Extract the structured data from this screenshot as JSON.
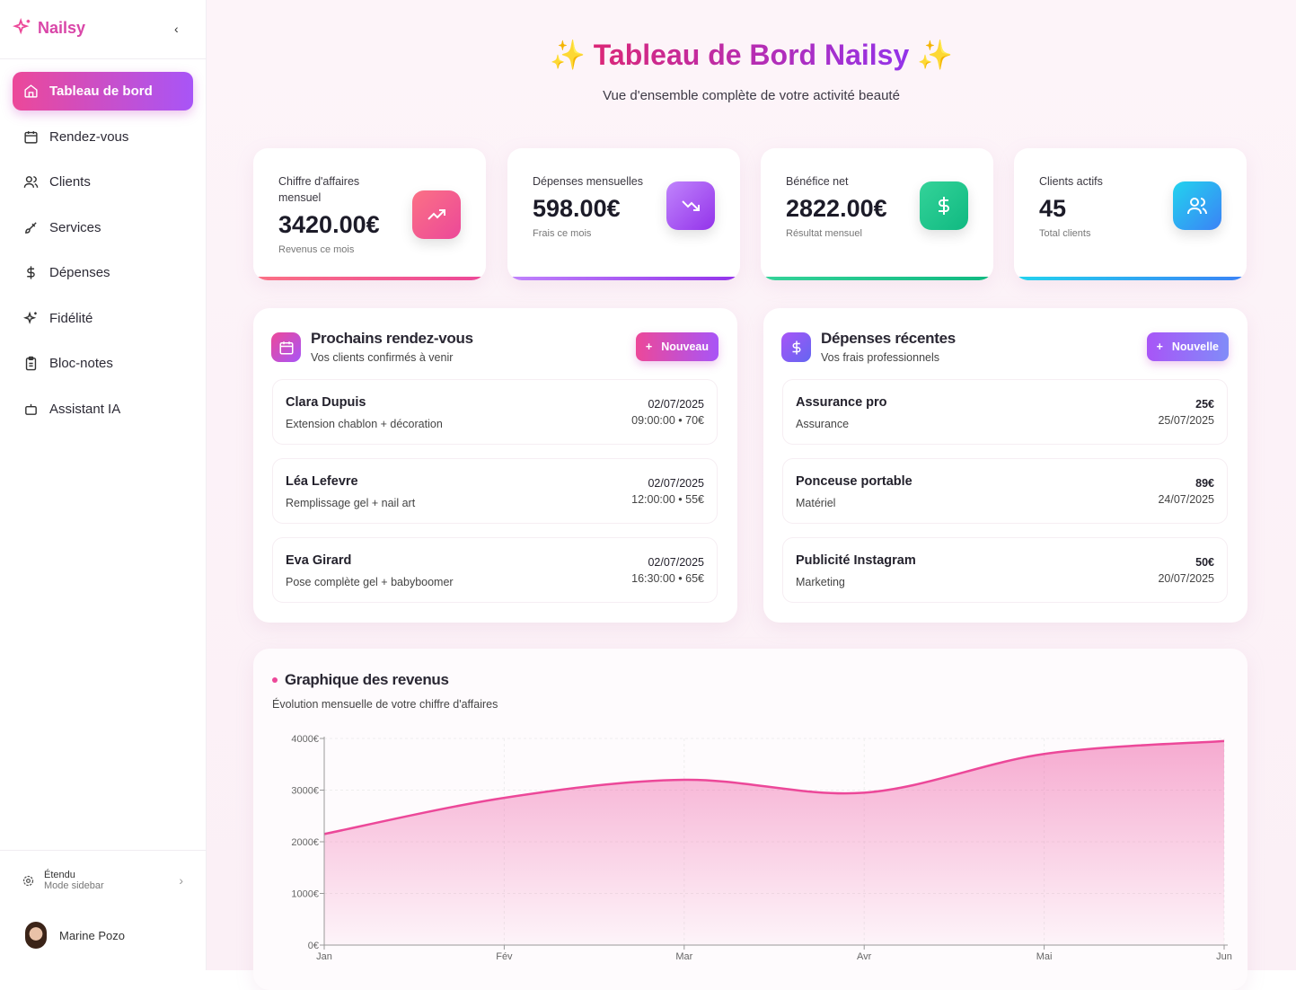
{
  "sidebar": {
    "brand": "Nailsy",
    "items": [
      {
        "label": "Tableau de bord",
        "icon": "home-icon",
        "active": true
      },
      {
        "label": "Rendez-vous",
        "icon": "calendar-icon"
      },
      {
        "label": "Clients",
        "icon": "users-icon"
      },
      {
        "label": "Services",
        "icon": "brush-icon"
      },
      {
        "label": "Dépenses",
        "icon": "dollar-icon"
      },
      {
        "label": "Fidélité",
        "icon": "sparkles-icon"
      },
      {
        "label": "Bloc-notes",
        "icon": "clipboard-icon"
      },
      {
        "label": "Assistant IA",
        "icon": "bot-icon"
      }
    ],
    "mode": {
      "title": "Étendu",
      "subtitle": "Mode sidebar"
    },
    "user": "Marine Pozo"
  },
  "header": {
    "title": "Tableau de Bord Nailsy",
    "subtitle": "Vue d'ensemble complète de votre activité beauté"
  },
  "stats": [
    {
      "label": "Chiffre d'affaires mensuel",
      "value": "3420.00€",
      "sub": "Revenus ce mois",
      "icon": "trending-up-icon",
      "color": "#f43f7e"
    },
    {
      "label": "Dépenses mensuelles",
      "value": "598.00€",
      "sub": "Frais ce mois",
      "icon": "trending-down-icon",
      "color": "#a855f7"
    },
    {
      "label": "Bénéfice net",
      "value": "2822.00€",
      "sub": "Résultat mensuel",
      "icon": "dollar-icon",
      "color": "#10b981"
    },
    {
      "label": "Clients actifs",
      "value": "45",
      "sub": "Total clients",
      "icon": "users-icon",
      "color": "#3b82f6"
    }
  ],
  "appointments": {
    "title": "Prochains rendez-vous",
    "subtitle": "Vos clients confirmés à venir",
    "button": "Nouveau",
    "items": [
      {
        "name": "Clara Dupuis",
        "service": "Extension chablon + décoration",
        "date": "02/07/2025",
        "detail": "09:00:00 • 70€"
      },
      {
        "name": "Léa Lefevre",
        "service": "Remplissage gel + nail art",
        "date": "02/07/2025",
        "detail": "12:00:00 • 55€"
      },
      {
        "name": "Eva Girard",
        "service": "Pose complète gel + babyboomer",
        "date": "02/07/2025",
        "detail": "16:30:00 • 65€"
      }
    ]
  },
  "expenses": {
    "title": "Dépenses récentes",
    "subtitle": "Vos frais professionnels",
    "button": "Nouvelle",
    "items": [
      {
        "name": "Assurance pro",
        "category": "Assurance",
        "amount": "25€",
        "date": "25/07/2025"
      },
      {
        "name": "Ponceuse portable",
        "category": "Matériel",
        "amount": "89€",
        "date": "24/07/2025"
      },
      {
        "name": "Publicité Instagram",
        "category": "Marketing",
        "amount": "50€",
        "date": "20/07/2025"
      }
    ]
  },
  "chart_data": {
    "type": "area",
    "title": "Graphique des revenus",
    "subtitle": "Évolution mensuelle de votre chiffre d'affaires",
    "categories": [
      "Jan",
      "Fév",
      "Mar",
      "Avr",
      "Mai",
      "Jun"
    ],
    "values": [
      2150,
      2850,
      3200,
      2950,
      3700,
      3950
    ],
    "yticks": [
      "0€",
      "1000€",
      "2000€",
      "3000€",
      "4000€"
    ],
    "ylim": [
      0,
      4000
    ],
    "grid": true,
    "color": "#ec4899"
  }
}
